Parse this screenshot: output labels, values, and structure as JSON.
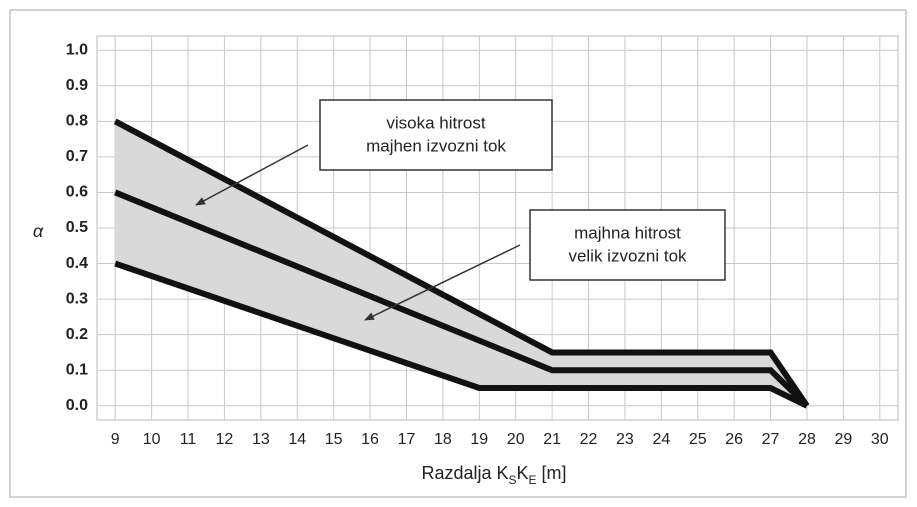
{
  "chart_data": {
    "type": "line",
    "ylabel": "α",
    "xlabel_parts": [
      "Razdalja K",
      "S",
      "K",
      "E",
      " [m]"
    ],
    "series": [
      {
        "color": "#111111",
        "x": [
          9,
          21,
          27,
          28
        ],
        "values": [
          0.8,
          0.15,
          0.15,
          0
        ]
      },
      {
        "color": "#111111",
        "x": [
          9,
          21,
          27,
          28
        ],
        "values": [
          0.6,
          0.1,
          0.1,
          0
        ]
      },
      {
        "color": "#111111",
        "x": [
          9,
          19,
          27,
          28
        ],
        "values": [
          0.4,
          0.05,
          0.05,
          0
        ]
      }
    ],
    "fill_color": "#d9d9d9",
    "xlim": [
      8.5,
      30.5
    ],
    "xticks": [
      9,
      10,
      11,
      12,
      13,
      14,
      15,
      16,
      17,
      18,
      19,
      20,
      21,
      22,
      23,
      24,
      25,
      26,
      27,
      28,
      29,
      30
    ],
    "ylim": [
      -0.04,
      1.04
    ],
    "yticks": [
      {
        "value": 0,
        "label": "0.0"
      },
      0.1,
      0.2,
      0.3,
      0.4,
      0.5,
      0.6,
      0.7,
      0.8,
      0.9,
      {
        "value": 1,
        "label": "1.0"
      }
    ],
    "grid": true,
    "annotations": [
      {
        "lines": [
          "visoka hitrost",
          "majhen izvozni tok"
        ]
      },
      {
        "lines": [
          "majhna hitrost",
          "velik izvozni tok"
        ]
      }
    ]
  }
}
